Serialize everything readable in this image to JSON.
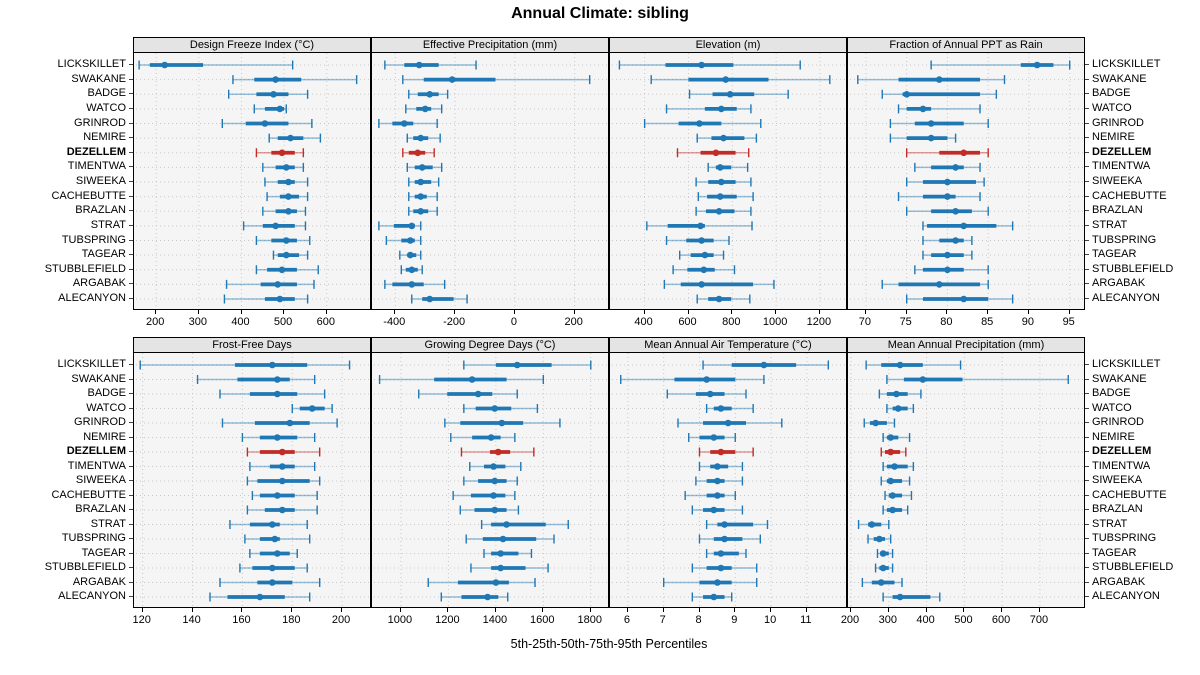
{
  "title": "Annual Climate: sibling",
  "axis_caption": "5th-25th-50th-75th-95th Percentiles",
  "percentiles": [
    "5th",
    "25th",
    "50th",
    "75th",
    "95th"
  ],
  "stations": [
    "LICKSKILLET",
    "SWAKANE",
    "BADGE",
    "WATCO",
    "GRINROD",
    "NEMIRE",
    "DEZELLEM",
    "TIMENTWA",
    "SIWEEKA",
    "CACHEBUTTE",
    "BRAZLAN",
    "STRAT",
    "TUBSPRING",
    "TAGEAR",
    "STUBBLEFIELD",
    "ARGABAK",
    "ALECANYON"
  ],
  "highlight_station": "DEZELLEM",
  "colors": {
    "series": "#1f77b4",
    "highlight": "#c22b26",
    "strip_bg": "#e4e4e4",
    "panel_bg": "#f5f5f5",
    "grid": "#c9c9c9",
    "border": "#000000",
    "text": "#000000"
  },
  "chart_data": [
    {
      "type": "dot-percentile",
      "panel": "Design Freeze Index (°C)",
      "grid_row": 1,
      "ticks": [
        200,
        300,
        400,
        500,
        600
      ],
      "domain": [
        148,
        706
      ],
      "values": [
        [
          160,
          185,
          220,
          310,
          520
        ],
        [
          380,
          430,
          480,
          540,
          670
        ],
        [
          370,
          435,
          475,
          510,
          555
        ],
        [
          430,
          455,
          490,
          500,
          505
        ],
        [
          355,
          410,
          455,
          510,
          565
        ],
        [
          465,
          485,
          515,
          545,
          585
        ],
        [
          435,
          470,
          495,
          525,
          545
        ],
        [
          450,
          480,
          505,
          525,
          545
        ],
        [
          455,
          485,
          510,
          525,
          555
        ],
        [
          460,
          490,
          510,
          535,
          555
        ],
        [
          450,
          480,
          510,
          530,
          550
        ],
        [
          405,
          450,
          480,
          525,
          550
        ],
        [
          435,
          470,
          505,
          530,
          560
        ],
        [
          475,
          485,
          505,
          535,
          555
        ],
        [
          435,
          460,
          495,
          530,
          580
        ],
        [
          365,
          445,
          485,
          530,
          570
        ],
        [
          360,
          455,
          490,
          525,
          555
        ]
      ]
    },
    {
      "type": "dot-percentile",
      "panel": "Effective Precipitation (mm)",
      "grid_row": 1,
      "ticks": [
        -400,
        -200,
        0,
        200
      ],
      "domain": [
        -478,
        318
      ],
      "values": [
        [
          -435,
          -370,
          -320,
          -255,
          -130
        ],
        [
          -375,
          -305,
          -210,
          -65,
          250
        ],
        [
          -355,
          -325,
          -285,
          -255,
          -225
        ],
        [
          -365,
          -330,
          -300,
          -280,
          -245
        ],
        [
          -455,
          -410,
          -370,
          -340,
          -260
        ],
        [
          -360,
          -340,
          -315,
          -290,
          -250
        ],
        [
          -375,
          -355,
          -325,
          -300,
          -270
        ],
        [
          -360,
          -335,
          -310,
          -275,
          -245
        ],
        [
          -355,
          -335,
          -315,
          -280,
          -255
        ],
        [
          -355,
          -335,
          -315,
          -295,
          -260
        ],
        [
          -355,
          -340,
          -315,
          -290,
          -260
        ],
        [
          -455,
          -405,
          -345,
          -335,
          -315
        ],
        [
          -430,
          -380,
          -350,
          -335,
          -315
        ],
        [
          -385,
          -360,
          -350,
          -330,
          -315
        ],
        [
          -380,
          -365,
          -345,
          -325,
          -310
        ],
        [
          -435,
          -410,
          -345,
          -305,
          -235
        ],
        [
          -345,
          -310,
          -285,
          -205,
          -160
        ]
      ]
    },
    {
      "type": "dot-percentile",
      "panel": "Elevation (m)",
      "grid_row": 1,
      "ticks": [
        400,
        600,
        800,
        1000,
        1200
      ],
      "domain": [
        242,
        1328
      ],
      "values": [
        [
          285,
          495,
          660,
          805,
          1110
        ],
        [
          430,
          600,
          770,
          965,
          1245
        ],
        [
          605,
          710,
          790,
          900,
          1055
        ],
        [
          500,
          675,
          750,
          820,
          885
        ],
        [
          400,
          555,
          650,
          750,
          930
        ],
        [
          640,
          705,
          760,
          855,
          910
        ],
        [
          550,
          655,
          725,
          815,
          875
        ],
        [
          690,
          725,
          745,
          795,
          870
        ],
        [
          635,
          690,
          750,
          815,
          885
        ],
        [
          645,
          685,
          745,
          820,
          895
        ],
        [
          635,
          680,
          740,
          810,
          885
        ],
        [
          410,
          505,
          655,
          675,
          890
        ],
        [
          500,
          590,
          660,
          715,
          785
        ],
        [
          560,
          610,
          675,
          715,
          760
        ],
        [
          530,
          595,
          670,
          720,
          810
        ],
        [
          490,
          565,
          660,
          895,
          990
        ],
        [
          640,
          690,
          740,
          795,
          880
        ]
      ]
    },
    {
      "type": "dot-percentile",
      "panel": "Fraction of Annual PPT as Rain",
      "grid_row": 1,
      "ticks": [
        70,
        75,
        80,
        85,
        90,
        95
      ],
      "domain": [
        67.8,
        97
      ],
      "values": [
        [
          78,
          89,
          91,
          93,
          95
        ],
        [
          69,
          74,
          79,
          84,
          87
        ],
        [
          72,
          74.5,
          75,
          84,
          86
        ],
        [
          74,
          75,
          77,
          78,
          84
        ],
        [
          73,
          76,
          78,
          82,
          85
        ],
        [
          73,
          75,
          78,
          80,
          81
        ],
        [
          75,
          79,
          82,
          84,
          85
        ],
        [
          76,
          78,
          81,
          82,
          84
        ],
        [
          75,
          77,
          80,
          83.5,
          84.5
        ],
        [
          74,
          77,
          80,
          81,
          84
        ],
        [
          75,
          78,
          81,
          83,
          85
        ],
        [
          77,
          77.5,
          82,
          86,
          88
        ],
        [
          77,
          79,
          81,
          82,
          83
        ],
        [
          77,
          78,
          80,
          82,
          83
        ],
        [
          76,
          77,
          80,
          82,
          85
        ],
        [
          72,
          74,
          79,
          84,
          85
        ],
        [
          75,
          77,
          82,
          85,
          88
        ]
      ]
    },
    {
      "type": "dot-percentile",
      "panel": "Frost-Free Days",
      "grid_row": 2,
      "ticks": [
        120,
        140,
        160,
        180,
        200
      ],
      "domain": [
        116.5,
        212
      ],
      "values": [
        [
          119,
          157,
          172,
          186,
          203
        ],
        [
          142,
          158,
          174,
          179,
          189
        ],
        [
          151,
          163,
          174,
          182,
          193
        ],
        [
          180,
          183,
          188,
          193,
          196
        ],
        [
          152,
          165,
          179,
          187,
          198
        ],
        [
          160,
          167,
          174,
          182,
          189
        ],
        [
          162,
          167,
          176,
          181,
          191
        ],
        [
          163,
          171,
          176,
          181,
          189
        ],
        [
          162,
          166,
          176,
          187,
          191
        ],
        [
          164,
          167,
          174,
          181,
          190
        ],
        [
          162,
          169,
          176,
          181,
          190
        ],
        [
          155,
          163,
          172,
          175,
          186
        ],
        [
          161,
          167,
          173,
          175,
          187
        ],
        [
          163,
          167,
          174,
          179,
          182
        ],
        [
          159,
          164,
          172,
          181,
          186
        ],
        [
          151,
          166,
          172,
          180,
          191
        ],
        [
          147,
          154,
          167,
          177,
          187
        ]
      ]
    },
    {
      "type": "dot-percentile",
      "panel": "Growing Degree Days (°C)",
      "grid_row": 2,
      "ticks": [
        1000,
        1200,
        1400,
        1600,
        1800
      ],
      "domain": [
        878,
        1881
      ],
      "values": [
        [
          1265,
          1400,
          1490,
          1635,
          1800
        ],
        [
          910,
          1140,
          1300,
          1445,
          1600
        ],
        [
          1075,
          1195,
          1325,
          1385,
          1490
        ],
        [
          1265,
          1315,
          1395,
          1465,
          1575
        ],
        [
          1185,
          1250,
          1425,
          1515,
          1670
        ],
        [
          1210,
          1300,
          1380,
          1420,
          1480
        ],
        [
          1255,
          1375,
          1410,
          1460,
          1560
        ],
        [
          1290,
          1350,
          1390,
          1440,
          1505
        ],
        [
          1265,
          1325,
          1395,
          1445,
          1490
        ],
        [
          1220,
          1295,
          1390,
          1440,
          1480
        ],
        [
          1250,
          1310,
          1395,
          1445,
          1495
        ],
        [
          1340,
          1380,
          1445,
          1610,
          1705
        ],
        [
          1275,
          1345,
          1430,
          1570,
          1645
        ],
        [
          1350,
          1380,
          1420,
          1495,
          1550
        ],
        [
          1295,
          1380,
          1420,
          1525,
          1620
        ],
        [
          1115,
          1240,
          1400,
          1455,
          1565
        ],
        [
          1170,
          1255,
          1365,
          1410,
          1450
        ]
      ]
    },
    {
      "type": "dot-percentile",
      "panel": "Mean Annual Air Temperature (°C)",
      "grid_row": 2,
      "ticks": [
        6,
        7,
        8,
        9,
        10,
        11
      ],
      "domain": [
        5.5,
        12.15
      ],
      "values": [
        [
          8.1,
          8.9,
          9.8,
          10.7,
          11.6
        ],
        [
          5.8,
          7.3,
          8.2,
          9.0,
          9.8
        ],
        [
          7.1,
          7.9,
          8.3,
          8.7,
          9.3
        ],
        [
          8.2,
          8.4,
          8.6,
          8.9,
          9.5
        ],
        [
          7.4,
          8.1,
          8.8,
          9.3,
          10.3
        ],
        [
          7.7,
          8.0,
          8.4,
          8.7,
          9.0
        ],
        [
          8.0,
          8.3,
          8.6,
          9.0,
          9.5
        ],
        [
          8.0,
          8.3,
          8.5,
          8.8,
          9.2
        ],
        [
          7.9,
          8.2,
          8.5,
          8.7,
          9.2
        ],
        [
          7.6,
          8.2,
          8.5,
          8.7,
          9.0
        ],
        [
          7.8,
          8.1,
          8.4,
          8.7,
          9.2
        ],
        [
          8.2,
          8.5,
          8.7,
          9.5,
          9.9
        ],
        [
          8.0,
          8.4,
          8.7,
          9.2,
          9.7
        ],
        [
          8.2,
          8.4,
          8.6,
          9.1,
          9.3
        ],
        [
          7.8,
          8.2,
          8.6,
          8.9,
          9.6
        ],
        [
          7.0,
          8.0,
          8.5,
          8.9,
          9.6
        ],
        [
          7.8,
          8.1,
          8.4,
          8.7,
          8.9
        ]
      ]
    },
    {
      "type": "dot-percentile",
      "panel": "Mean Annual Precipitation (mm)",
      "grid_row": 2,
      "ticks": [
        200,
        300,
        400,
        500,
        600,
        700
      ],
      "domain": [
        192,
        822
      ],
      "values": [
        [
          240,
          280,
          330,
          390,
          490
        ],
        [
          295,
          340,
          390,
          495,
          775
        ],
        [
          275,
          295,
          320,
          350,
          385
        ],
        [
          295,
          310,
          325,
          350,
          365
        ],
        [
          235,
          250,
          265,
          295,
          315
        ],
        [
          285,
          295,
          305,
          325,
          355
        ],
        [
          280,
          290,
          305,
          330,
          345
        ],
        [
          285,
          295,
          315,
          350,
          365
        ],
        [
          280,
          295,
          305,
          335,
          355
        ],
        [
          290,
          300,
          310,
          335,
          360
        ],
        [
          285,
          295,
          310,
          335,
          350
        ],
        [
          220,
          245,
          255,
          280,
          300
        ],
        [
          245,
          260,
          275,
          290,
          305
        ],
        [
          270,
          280,
          285,
          300,
          310
        ],
        [
          265,
          275,
          285,
          300,
          310
        ],
        [
          230,
          255,
          280,
          315,
          335
        ],
        [
          285,
          310,
          330,
          410,
          435
        ]
      ]
    }
  ]
}
